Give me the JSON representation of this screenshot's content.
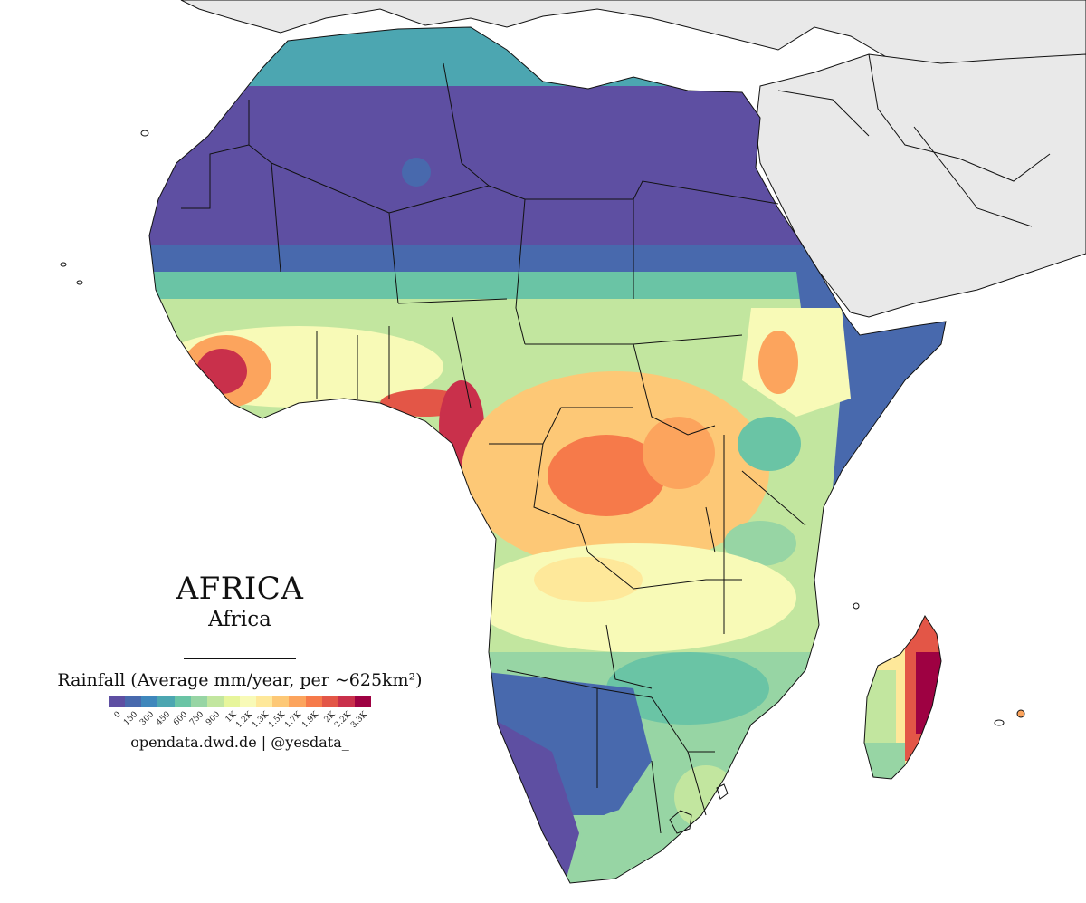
{
  "title": "AFRICA",
  "subtitle": "Africa",
  "legend": {
    "label": "Rainfall (Average mm/year, per ~625km²)",
    "ticks": [
      "0",
      "150",
      "300",
      "450",
      "600",
      "750",
      "900",
      "1K",
      "1.2K",
      "1.3K",
      "1.5K",
      "1.7K",
      "1.9K",
      "2K",
      "2.2K",
      "3.3K"
    ],
    "colors": [
      "#5e4fa2",
      "#4869ad",
      "#3f87bc",
      "#4ca6b1",
      "#6ac4a5",
      "#97d5a4",
      "#c2e69f",
      "#e7f59b",
      "#f8fab7",
      "#fee89a",
      "#fdc876",
      "#fca45d",
      "#f67a4a",
      "#e35647",
      "#c9304b",
      "#9e0142"
    ]
  },
  "credit": "opendata.dwd.de | @yesdata_",
  "map": {
    "region": "Africa",
    "land_color": "#e9e9e9",
    "border_color": "#111111"
  }
}
